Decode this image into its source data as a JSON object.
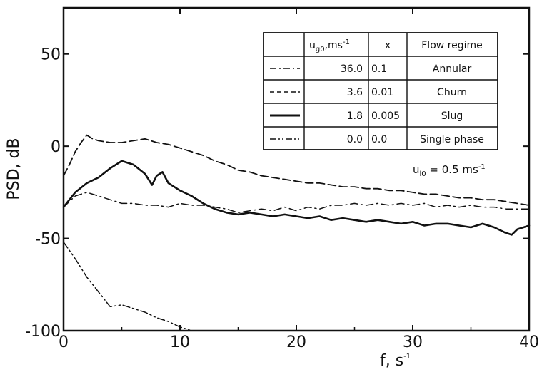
{
  "chart_data": {
    "type": "line",
    "xlabel": "f,  s",
    "xlabel_sup": "-1",
    "ylabel": "PSD,  dB",
    "xlim": [
      0,
      40
    ],
    "ylim": [
      -100,
      75
    ],
    "xticks": [
      0,
      10,
      20,
      30,
      40
    ],
    "yticks": [
      -100,
      -50,
      0,
      50
    ],
    "xtick_labels": [
      "0",
      "10",
      "20",
      "30",
      "40"
    ],
    "ytick_labels": [
      "-100",
      "-50",
      "0",
      "50"
    ],
    "grid": false,
    "legend": {
      "placement": "top-right",
      "headers": {
        "col1_main": "u",
        "col1_sub": "g0",
        "col1_rest": ",ms",
        "col1_sup": "-1",
        "col2": "x",
        "col3": "Flow regime"
      },
      "rows": [
        {
          "ug0": "36.0",
          "x": "0.1",
          "regime": "Annular",
          "style": "dash-dot"
        },
        {
          "ug0": "3.6",
          "x": "0.01",
          "regime": "Churn",
          "style": "dashed"
        },
        {
          "ug0": "1.8",
          "x": "0.005",
          "regime": "Slug",
          "style": "solid-thick"
        },
        {
          "ug0": "0.0",
          "x": "0.0",
          "regime": "Single phase",
          "style": "dash-dot-dot"
        }
      ]
    },
    "annotation": {
      "main": "u",
      "sub": "l0",
      "rest": " = 0.5 ms",
      "sup": "-1"
    },
    "series": [
      {
        "name": "Annular",
        "style": "dash-dot",
        "x": [
          0,
          1,
          2,
          3,
          4,
          5,
          6,
          7,
          8,
          9,
          10,
          11,
          12,
          13,
          14,
          15,
          16,
          17,
          18,
          19,
          20,
          21,
          22,
          23,
          24,
          25,
          26,
          27,
          28,
          29,
          30,
          31,
          32,
          33,
          34,
          35,
          36,
          37,
          38,
          39,
          40
        ],
        "y": [
          -33,
          -27,
          -25,
          -27,
          -29,
          -31,
          -31,
          -32,
          -32,
          -33,
          -31,
          -32,
          -32,
          -33,
          -34,
          -36,
          -35,
          -34,
          -35,
          -33,
          -35,
          -33,
          -34,
          -32,
          -32,
          -31,
          -32,
          -31,
          -32,
          -31,
          -32,
          -31,
          -33,
          -32,
          -33,
          -32,
          -33,
          -33,
          -34,
          -34,
          -34
        ]
      },
      {
        "name": "Churn",
        "style": "dashed",
        "x": [
          0,
          0.5,
          1,
          1.5,
          2,
          2.5,
          3,
          4,
          5,
          6,
          7,
          8,
          9,
          10,
          11,
          12,
          13,
          14,
          15,
          16,
          17,
          18,
          19,
          20,
          21,
          22,
          23,
          24,
          25,
          26,
          27,
          28,
          29,
          30,
          31,
          32,
          33,
          34,
          35,
          36,
          37,
          38,
          39,
          40
        ],
        "y": [
          -16,
          -10,
          -3,
          2,
          6,
          4,
          3,
          2,
          2,
          3,
          4,
          2,
          1,
          -1,
          -3,
          -5,
          -8,
          -10,
          -13,
          -14,
          -16,
          -17,
          -18,
          -19,
          -20,
          -20,
          -21,
          -22,
          -22,
          -23,
          -23,
          -24,
          -24,
          -25,
          -26,
          -26,
          -27,
          -28,
          -28,
          -29,
          -29,
          -30,
          -31,
          -32
        ]
      },
      {
        "name": "Slug",
        "style": "solid-thick",
        "x": [
          0,
          1,
          2,
          3,
          4,
          5,
          6,
          7,
          7.6,
          8,
          8.5,
          9,
          10,
          11,
          12,
          13,
          14,
          15,
          16,
          17,
          18,
          19,
          20,
          21,
          22,
          23,
          24,
          25,
          26,
          27,
          28,
          29,
          30,
          31,
          32,
          33,
          34,
          35,
          36,
          37,
          38,
          38.5,
          39,
          40
        ],
        "y": [
          -33,
          -25,
          -20,
          -17,
          -12,
          -8,
          -10,
          -15,
          -21,
          -16,
          -14,
          -20,
          -24,
          -27,
          -31,
          -34,
          -36,
          -37,
          -36,
          -37,
          -38,
          -37,
          -38,
          -39,
          -38,
          -40,
          -39,
          -40,
          -41,
          -40,
          -41,
          -42,
          -41,
          -43,
          -42,
          -42,
          -43,
          -44,
          -42,
          -44,
          -47,
          -48,
          -45,
          -43
        ]
      },
      {
        "name": "Single phase",
        "style": "dash-dot-dot",
        "x": [
          0,
          1,
          2,
          3,
          4,
          5,
          6,
          7,
          8,
          9,
          10,
          11
        ],
        "y": [
          -52,
          -61,
          -71,
          -79,
          -87,
          -86,
          -88,
          -90,
          -93,
          -95,
          -98,
          -100
        ]
      }
    ]
  }
}
